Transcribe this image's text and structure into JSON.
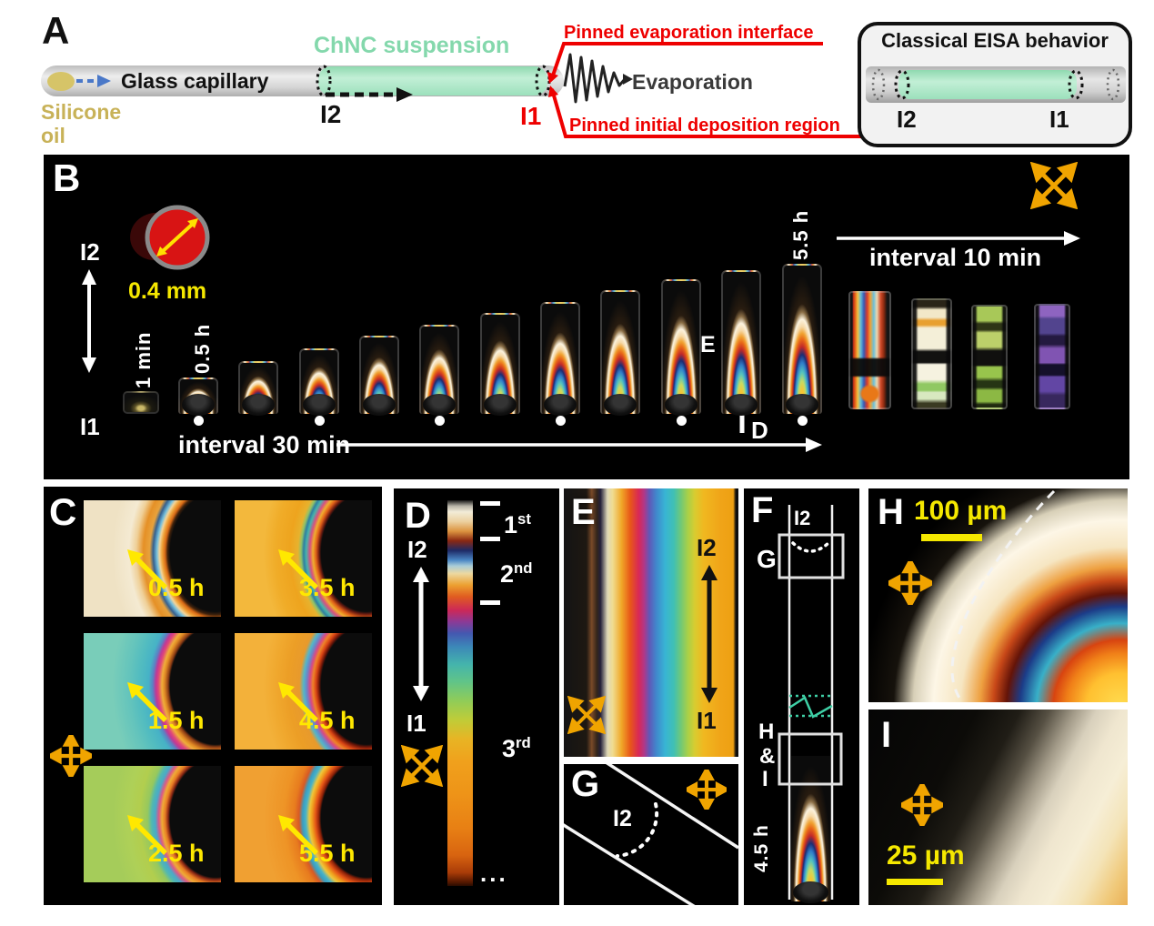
{
  "colors": {
    "accent_orange_polarizer": "#f0a400",
    "label_yellow": "#ffe800",
    "scale_yellow": "#f5e800",
    "annotation_red": "#ee0000",
    "chnc_green_text": "#84d8ac",
    "oil_khaki_text": "#c8b258",
    "teal_break": "#3ecfa5"
  },
  "panelA": {
    "label": "A",
    "silicone_oil": "Silicone oil",
    "glass_capillary": "Glass capillary",
    "chnc_suspension": "ChNC suspension",
    "i2": "I2",
    "i1": "I1",
    "pinned_evaporation_interface": "Pinned evaporation interface",
    "evaporation": "Evaporation",
    "pinned_initial_deposition_region": "Pinned initial deposition region",
    "inset": {
      "title": "Classical EISA behavior",
      "i2": "I2",
      "i1": "I1"
    }
  },
  "panelB": {
    "label": "B",
    "i2": "I2",
    "i1": "I1",
    "diameter_label": "0.4 mm",
    "time_first": "1 min",
    "time_half": "0.5 h",
    "time_last": "5.5 h",
    "interval_30": "interval 30 min",
    "interval_10": "interval 10 min",
    "marker_d": "D",
    "marker_e": "E",
    "caps_30min_heights": [
      25,
      40,
      58,
      72,
      86,
      98,
      111,
      123,
      136,
      148,
      158,
      165
    ],
    "caps_30min_dots": [
      1,
      3,
      5,
      7,
      9,
      11
    ],
    "caps_10min_heights": [
      130,
      122,
      115,
      116
    ]
  },
  "panelC": {
    "label": "C",
    "items": [
      {
        "time": "0.5 h"
      },
      {
        "time": "3.5 h"
      },
      {
        "time": "1.5 h"
      },
      {
        "time": "4.5 h"
      },
      {
        "time": "2.5 h"
      },
      {
        "time": "5.5 h"
      }
    ]
  },
  "panelD": {
    "label": "D",
    "i2": "I2",
    "i1": "I1",
    "orders": [
      {
        "value": "1",
        "suffix": "st"
      },
      {
        "value": "2",
        "suffix": "nd"
      },
      {
        "value": "3",
        "suffix": "rd"
      }
    ],
    "more": "..."
  },
  "panelE": {
    "label": "E",
    "i2": "I2",
    "i1": "I1"
  },
  "panelF": {
    "label": "F",
    "i2": "I2",
    "box_g": "G",
    "box_hi": [
      "H",
      "&",
      "I"
    ],
    "time": "4.5 h"
  },
  "panelG": {
    "label": "G",
    "i2": "I2"
  },
  "panelH": {
    "label": "H",
    "scale": "100 µm"
  },
  "panelI": {
    "label": "I",
    "scale": "25 µm"
  }
}
